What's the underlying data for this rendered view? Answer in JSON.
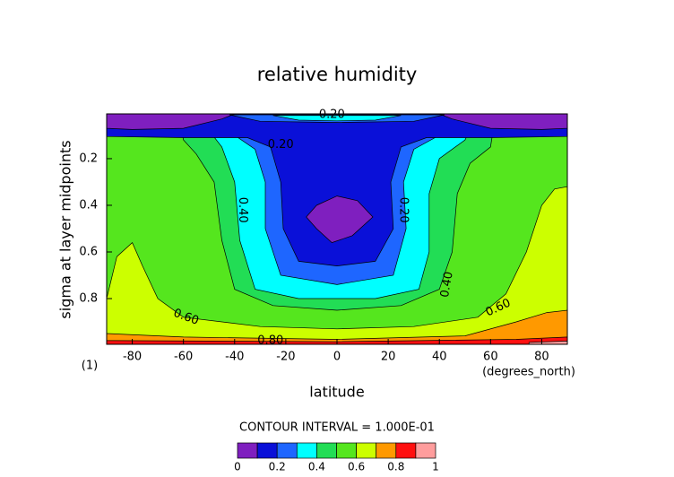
{
  "chart_data": {
    "type": "contour",
    "title": "relative humidity",
    "x_label": "latitude",
    "y_label": "sigma at layer midpoints",
    "x_units": "(degrees_north)",
    "y_units": "(1)",
    "subtitle": "CONTOUR INTERVAL = 1.000E-01",
    "xlim": [
      -90,
      90
    ],
    "ylim": [
      0.996,
      0.008
    ],
    "xticks": [
      -80,
      -60,
      -40,
      -20,
      0,
      20,
      40,
      60,
      80
    ],
    "yticks": [
      0.2,
      0.4,
      0.6,
      0.8
    ],
    "levels": [
      0,
      0.1,
      0.2,
      0.3,
      0.4,
      0.5,
      0.6,
      0.7,
      0.8,
      0.9,
      1
    ],
    "colors": [
      "#7f1fbf",
      "#0a10d8",
      "#1e66ff",
      "#00ffff",
      "#22dd55",
      "#55e61e",
      "#ccff00",
      "#ff9900",
      "#ff1010",
      "#ff9d9d"
    ],
    "colorbar_ticks": [
      0,
      0.2,
      0.4,
      0.6,
      0.8,
      1
    ],
    "contour_labels": [
      {
        "value": 0.2,
        "label": "0.20"
      },
      {
        "value": 0.2,
        "label": "0.20"
      },
      {
        "value": 0.4,
        "label": "0.40"
      },
      {
        "value": 0.2,
        "label": "0.20"
      },
      {
        "value": 0.4,
        "label": "0.40"
      },
      {
        "value": 0.6,
        "label": "0.60"
      },
      {
        "value": 0.6,
        "label": "0.60"
      },
      {
        "value": 0.8,
        "label": "0.80"
      }
    ]
  }
}
